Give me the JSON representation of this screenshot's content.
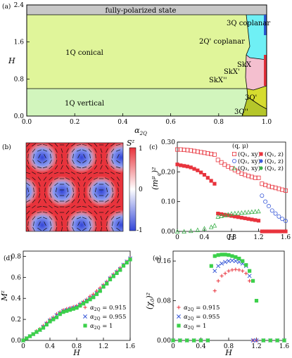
{
  "panel_a": {
    "tag": "(a)",
    "xlabel": "α",
    "xlabel_sub": "2Q",
    "ylabel": "H",
    "regions": {
      "fp": "fully-polarized state",
      "conical": "1Q conical",
      "vertical": "1Q vertical",
      "cop3": "3Q coplanar",
      "cop2": "2Q' coplanar",
      "skx": "SkX",
      "skx1": "SkX'",
      "skx2": "SkX''",
      "q3p": "3Q'",
      "q3pp": "3Q''"
    },
    "colors": {
      "fp": "#c8c8c8",
      "conical": "#e0f59a",
      "vertical": "#d2f5bd",
      "cop": "#6ff0f5",
      "skx": "#f4bfcf",
      "q3p": "#d6dc2f",
      "q3pp": "#b5c62a",
      "blue": "#2a5bd0",
      "red": "#e0303a"
    },
    "xticks": [
      "0.0",
      "0.2",
      "0.4",
      "0.6",
      "0.8",
      "1.0"
    ],
    "yticks": [
      "0.0",
      "0.8",
      "1.6",
      "2.4"
    ]
  },
  "panel_b": {
    "tag": "(b)",
    "cbar_label": "S",
    "cbar_sup": "z",
    "cbar_ticks": [
      "1",
      "0",
      "-1"
    ],
    "colors": {
      "pos": "#e8333c",
      "mid": "#ffffff",
      "neg": "#3346d8"
    }
  },
  "panel_c": {
    "tag": "(c)",
    "xlabel": "H",
    "ylabel": "(m",
    "xticks": [
      "0",
      "0.4",
      "0.8",
      "1.2",
      "1.6"
    ],
    "yticks": [
      "0.00",
      "0.10",
      "0.20",
      "0.30"
    ],
    "legend_title": "(q, μ)",
    "legend": [
      {
        "label": "(Q₁, xy)",
        "color": "#e8333c",
        "marker": "square-open"
      },
      {
        "label": "(Q₁, z)",
        "color": "#e8333c",
        "marker": "square-filled"
      },
      {
        "label": "(Q₂, xy)",
        "color": "#3a5ad8",
        "marker": "circle-open"
      },
      {
        "label": "(Q₂, z)",
        "color": "#3a5ad8",
        "marker": "circle-filled"
      },
      {
        "label": "(Q₃, xy)",
        "color": "#3bb04a",
        "marker": "triangle-open"
      },
      {
        "label": "(Q₃, z)",
        "color": "#3bb04a",
        "marker": "circle-filled"
      }
    ]
  },
  "panel_d": {
    "tag": "(d)",
    "xlabel": "H",
    "ylabel": "M",
    "ylabel_sup": "z",
    "xticks": [
      "0",
      "0.4",
      "0.8",
      "1.2",
      "1.6"
    ],
    "yticks": [
      "0.0",
      "0.2",
      "0.4",
      "0.6",
      "0.8"
    ],
    "legend": [
      {
        "label": "α",
        "sub": "2Q",
        "value": " = 0.915",
        "color": "#e8333c",
        "marker": "plus"
      },
      {
        "label": "α",
        "sub": "2Q",
        "value": " = 0.955",
        "color": "#3a5ad8",
        "marker": "cross"
      },
      {
        "label": "α",
        "sub": "2Q",
        "value": " = 1",
        "color": "#3bd04a",
        "marker": "square"
      }
    ]
  },
  "panel_e": {
    "tag": "(e)",
    "xlabel": "H",
    "ylabel": "(χ",
    "xticks": [
      "0",
      "0.4",
      "0.8",
      "1.2",
      "1.6"
    ],
    "yticks": [
      "0.00",
      "0.08",
      "0.16"
    ],
    "legend": [
      {
        "label": "α",
        "sub": "2Q",
        "value": " = 0.915",
        "color": "#e8333c",
        "marker": "plus"
      },
      {
        "label": "α",
        "sub": "2Q",
        "value": " = 0.955",
        "color": "#3a5ad8",
        "marker": "cross"
      },
      {
        "label": "α",
        "sub": "2Q",
        "value": " = 1",
        "color": "#3bd04a",
        "marker": "square"
      }
    ]
  },
  "chart_data": [
    {
      "type": "area",
      "panel": "a",
      "xlabel": "α2Q",
      "ylabel": "H",
      "xlim": [
        0,
        1
      ],
      "ylim": [
        0,
        2.4
      ],
      "boundaries": {
        "saturation": [
          [
            0,
            2.2
          ],
          [
            0.9,
            2.2
          ],
          [
            1.0,
            2.2
          ]
        ],
        "conical_vertical": [
          [
            0,
            0.6
          ],
          [
            0.9,
            0.6
          ],
          [
            1.0,
            0.62
          ]
        ]
      }
    },
    {
      "type": "scatter",
      "panel": "c",
      "xlabel": "H",
      "ylim": [
        0,
        0.3
      ],
      "xlim": [
        0,
        1.6
      ],
      "series": [
        {
          "name": "(Q1, xy)",
          "x": [
            0,
            0.05,
            0.1,
            0.15,
            0.2,
            0.25,
            0.3,
            0.35,
            0.4,
            0.45,
            0.5,
            0.55,
            0.6,
            0.65,
            0.7,
            0.75,
            0.8,
            0.85,
            0.9,
            0.95,
            1.0,
            1.05,
            1.1,
            1.15,
            1.2,
            1.25,
            1.3,
            1.35,
            1.4,
            1.45,
            1.5,
            1.55,
            1.6
          ],
          "y": [
            0.275,
            0.275,
            0.274,
            0.273,
            0.272,
            0.27,
            0.268,
            0.266,
            0.264,
            0.262,
            0.26,
            0.258,
            0.24,
            0.232,
            0.224,
            0.218,
            0.212,
            0.206,
            0.2,
            0.194,
            0.19,
            0.186,
            0.183,
            0.18,
            0.18,
            0.16,
            0.156,
            0.152,
            0.149,
            0.146,
            0.143,
            0.14,
            0.137
          ]
        },
        {
          "name": "(Q1, z)",
          "x": [
            0,
            0.05,
            0.1,
            0.15,
            0.2,
            0.25,
            0.3,
            0.35,
            0.4,
            0.45,
            0.5,
            0.55,
            0.6,
            0.65,
            0.7,
            0.75,
            0.8,
            0.85,
            0.9,
            0.95,
            1.0,
            1.05,
            1.1,
            1.15,
            1.2,
            1.25,
            1.3,
            1.35,
            1.4,
            1.45,
            1.5,
            1.55,
            1.6
          ],
          "y": [
            0.225,
            0.222,
            0.22,
            0.218,
            0.215,
            0.21,
            0.205,
            0.198,
            0.19,
            0.18,
            0.17,
            0.16,
            0.06,
            0.058,
            0.056,
            0.054,
            0.052,
            0.05,
            0.048,
            0.046,
            0.044,
            0.042,
            0.04,
            0.038,
            0.036,
            0,
            0,
            0,
            0,
            0,
            0,
            0,
            0
          ]
        },
        {
          "name": "(Q2, xy)",
          "x": [
            1.25,
            1.3,
            1.35,
            1.4,
            1.45,
            1.5,
            1.55,
            1.6
          ],
          "y": [
            0.12,
            0.1,
            0.085,
            0.07,
            0.06,
            0.05,
            0.042,
            0.035
          ]
        },
        {
          "name": "(Q3, xy)",
          "x": [
            0,
            0.1,
            0.2,
            0.3,
            0.4,
            0.5,
            0.55,
            0.6,
            0.65,
            0.7,
            0.75,
            0.8,
            0.85,
            0.9,
            0.95,
            1.0,
            1.05,
            1.1,
            1.15,
            1.2
          ],
          "y": [
            0,
            0,
            0.002,
            0.005,
            0.01,
            0.015,
            0.02,
            0.05,
            0.052,
            0.055,
            0.057,
            0.06,
            0.061,
            0.062,
            0.063,
            0.064,
            0.065,
            0.066,
            0.067,
            0.068
          ]
        }
      ]
    },
    {
      "type": "scatter",
      "panel": "d",
      "xlabel": "H",
      "ylabel": "Mz",
      "xlim": [
        0,
        1.6
      ],
      "ylim": [
        0,
        0.8
      ],
      "series": [
        {
          "name": "α2Q = 0.915",
          "x": [
            0,
            0.05,
            0.1,
            0.15,
            0.2,
            0.25,
            0.3,
            0.35,
            0.4,
            0.45,
            0.5,
            0.55,
            0.6,
            0.65,
            0.7,
            0.75,
            0.8,
            0.85,
            0.9,
            0.95,
            1.0,
            1.05,
            1.1,
            1.15,
            1.2,
            1.25,
            1.3,
            1.35,
            1.4,
            1.45,
            1.5,
            1.55,
            1.6
          ],
          "y": [
            0,
            0.02,
            0.04,
            0.06,
            0.09,
            0.11,
            0.14,
            0.17,
            0.2,
            0.22,
            0.25,
            0.27,
            0.29,
            0.3,
            0.31,
            0.32,
            0.33,
            0.35,
            0.37,
            0.39,
            0.42,
            0.44,
            0.47,
            0.5,
            0.53,
            0.56,
            0.6,
            0.63,
            0.66,
            0.69,
            0.72,
            0.75,
            0.78
          ]
        },
        {
          "name": "α2Q = 0.955",
          "x": [
            0,
            0.05,
            0.1,
            0.15,
            0.2,
            0.25,
            0.3,
            0.35,
            0.4,
            0.45,
            0.5,
            0.55,
            0.6,
            0.65,
            0.7,
            0.75,
            0.8,
            0.85,
            0.9,
            0.95,
            1.0,
            1.05,
            1.1,
            1.15,
            1.2,
            1.25,
            1.3,
            1.35,
            1.4,
            1.45,
            1.5,
            1.55,
            1.6
          ],
          "y": [
            0,
            0.02,
            0.04,
            0.06,
            0.08,
            0.1,
            0.13,
            0.16,
            0.19,
            0.21,
            0.24,
            0.26,
            0.28,
            0.29,
            0.3,
            0.31,
            0.32,
            0.34,
            0.36,
            0.38,
            0.4,
            0.42,
            0.45,
            0.48,
            0.52,
            0.55,
            0.59,
            0.62,
            0.65,
            0.68,
            0.72,
            0.75,
            0.78
          ]
        },
        {
          "name": "α2Q = 1",
          "x": [
            0,
            0.05,
            0.1,
            0.15,
            0.2,
            0.25,
            0.3,
            0.35,
            0.4,
            0.45,
            0.5,
            0.55,
            0.6,
            0.65,
            0.7,
            0.75,
            0.8,
            0.85,
            0.9,
            0.95,
            1.0,
            1.05,
            1.1,
            1.15,
            1.2,
            1.25,
            1.3,
            1.35,
            1.4,
            1.45,
            1.5,
            1.55,
            1.6
          ],
          "y": [
            0,
            0.02,
            0.04,
            0.06,
            0.08,
            0.1,
            0.12,
            0.15,
            0.18,
            0.2,
            0.22,
            0.25,
            0.27,
            0.28,
            0.29,
            0.3,
            0.31,
            0.33,
            0.35,
            0.37,
            0.39,
            0.41,
            0.44,
            0.47,
            0.51,
            0.54,
            0.58,
            0.61,
            0.64,
            0.67,
            0.71,
            0.74,
            0.77
          ]
        }
      ]
    },
    {
      "type": "scatter",
      "panel": "e",
      "xlabel": "H",
      "xlim": [
        0,
        1.6
      ],
      "ylim": [
        0,
        0.18
      ],
      "series": [
        {
          "name": "α2Q = 0.915",
          "x": [
            0,
            0.1,
            0.2,
            0.3,
            0.4,
            0.5,
            0.6,
            0.65,
            0.7,
            0.75,
            0.8,
            0.85,
            0.9,
            0.95,
            1.0,
            1.05,
            1.1,
            1.15,
            1.2,
            1.3,
            1.4,
            1.5,
            1.6
          ],
          "y": [
            0,
            0,
            0,
            0,
            0,
            0,
            0.1,
            0.12,
            0.13,
            0.135,
            0.14,
            0.142,
            0.143,
            0.142,
            0.14,
            0.135,
            0.12,
            0,
            0,
            0,
            0,
            0,
            0
          ]
        },
        {
          "name": "α2Q = 0.955",
          "x": [
            0,
            0.1,
            0.2,
            0.3,
            0.4,
            0.5,
            0.6,
            0.65,
            0.7,
            0.75,
            0.8,
            0.85,
            0.9,
            0.95,
            1.0,
            1.05,
            1.1,
            1.15,
            1.2,
            1.3,
            1.4,
            1.5,
            1.6
          ],
          "y": [
            0,
            0,
            0,
            0,
            0,
            0,
            0.14,
            0.15,
            0.155,
            0.158,
            0.16,
            0.161,
            0.16,
            0.158,
            0.155,
            0.15,
            0.13,
            0,
            0,
            0,
            0,
            0,
            0
          ]
        },
        {
          "name": "α2Q = 1",
          "x": [
            0,
            0.1,
            0.2,
            0.3,
            0.4,
            0.5,
            0.55,
            0.6,
            0.65,
            0.7,
            0.75,
            0.8,
            0.85,
            0.9,
            0.95,
            1.0,
            1.05,
            1.1,
            1.15,
            1.2,
            1.3,
            1.4,
            1.5,
            1.6
          ],
          "y": [
            0,
            0,
            0,
            0,
            0,
            0,
            0.15,
            0.17,
            0.172,
            0.173,
            0.173,
            0.172,
            0.17,
            0.168,
            0.165,
            0.16,
            0.152,
            0.14,
            0.12,
            0.08,
            0,
            0,
            0,
            0
          ]
        }
      ]
    }
  ]
}
